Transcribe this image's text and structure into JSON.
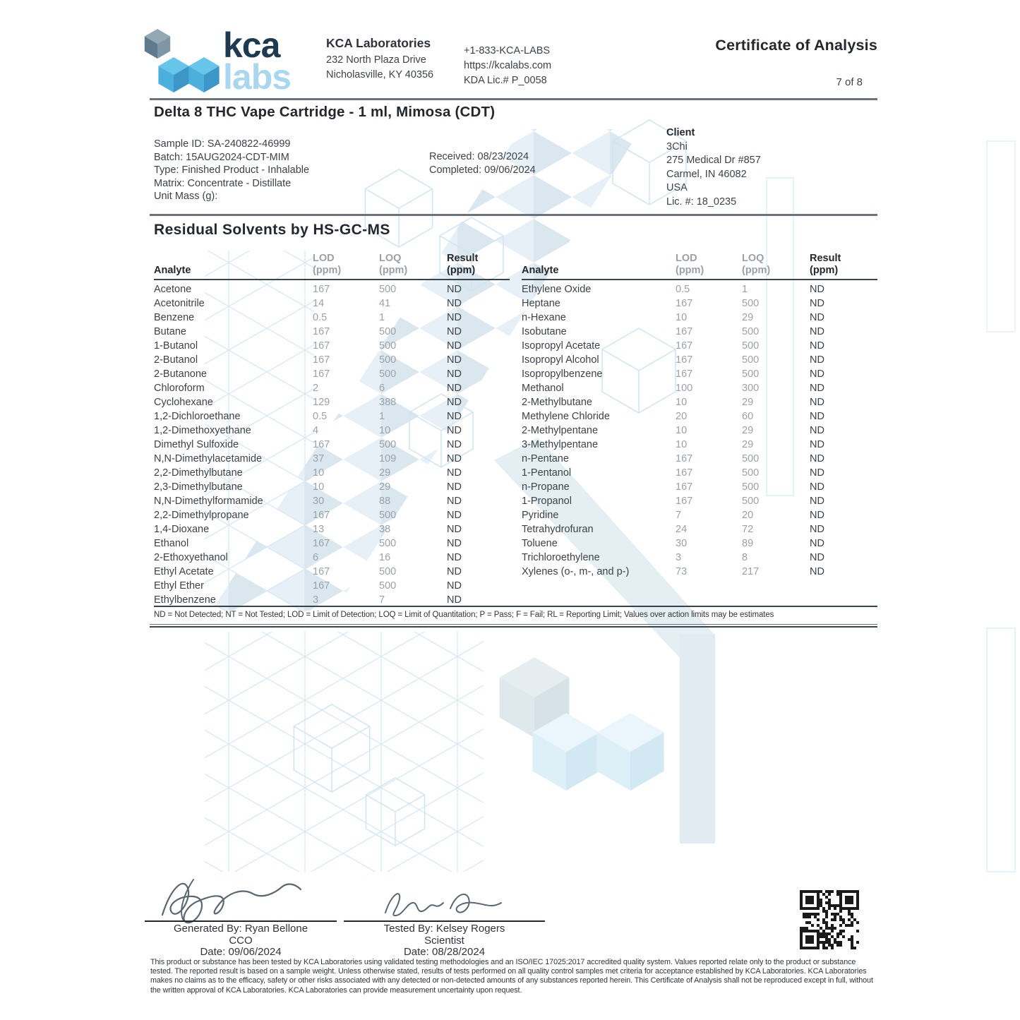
{
  "header": {
    "logo_kca": "kca",
    "logo_labs": "labs",
    "lab_name": "KCA Laboratories",
    "address_line1": "232 North Plaza Drive",
    "address_line2": "Nicholasville, KY 40356",
    "phone": "+1-833-KCA-LABS",
    "website": "https://kcalabs.com",
    "kda_license": "KDA Lic.# P_0058",
    "doc_title": "Certificate of Analysis",
    "page_indicator": "7 of 8"
  },
  "product": {
    "title": "Delta 8 THC Vape Cartridge - 1 ml, Mimosa (CDT)",
    "info_lines": [
      "Sample ID: SA-240822-46999",
      "Batch: 15AUG2024-CDT-MIM",
      "Type: Finished Product - Inhalable",
      "Matrix: Concentrate - Distillate",
      "Unit Mass (g):"
    ],
    "received": "Received: 08/23/2024",
    "completed": "Completed: 09/06/2024"
  },
  "client": {
    "heading": "Client",
    "lines": [
      "3Chi",
      "275 Medical Dr #857",
      "Carmel, IN 46082",
      "USA",
      "Lic. #: 18_0235"
    ]
  },
  "solvents": {
    "section_title": "Residual Solvents by HS-GC-MS",
    "columns": {
      "analyte": "Analyte",
      "lod": "LOD",
      "loq": "LOQ",
      "result": "Result",
      "ppm": "(ppm)"
    },
    "left": [
      {
        "analyte": "Acetone",
        "lod": "167",
        "loq": "500",
        "result": "ND"
      },
      {
        "analyte": "Acetonitrile",
        "lod": "14",
        "loq": "41",
        "result": "ND"
      },
      {
        "analyte": "Benzene",
        "lod": "0.5",
        "loq": "1",
        "result": "ND"
      },
      {
        "analyte": "Butane",
        "lod": "167",
        "loq": "500",
        "result": "ND"
      },
      {
        "analyte": "1-Butanol",
        "lod": "167",
        "loq": "500",
        "result": "ND"
      },
      {
        "analyte": "2-Butanol",
        "lod": "167",
        "loq": "500",
        "result": "ND"
      },
      {
        "analyte": "2-Butanone",
        "lod": "167",
        "loq": "500",
        "result": "ND"
      },
      {
        "analyte": "Chloroform",
        "lod": "2",
        "loq": "6",
        "result": "ND"
      },
      {
        "analyte": "Cyclohexane",
        "lod": "129",
        "loq": "388",
        "result": "ND"
      },
      {
        "analyte": "1,2-Dichloroethane",
        "lod": "0.5",
        "loq": "1",
        "result": "ND"
      },
      {
        "analyte": "1,2-Dimethoxyethane",
        "lod": "4",
        "loq": "10",
        "result": "ND"
      },
      {
        "analyte": "Dimethyl Sulfoxide",
        "lod": "167",
        "loq": "500",
        "result": "ND"
      },
      {
        "analyte": "N,N-Dimethylacetamide",
        "lod": "37",
        "loq": "109",
        "result": "ND"
      },
      {
        "analyte": "2,2-Dimethylbutane",
        "lod": "10",
        "loq": "29",
        "result": "ND"
      },
      {
        "analyte": "2,3-Dimethylbutane",
        "lod": "10",
        "loq": "29",
        "result": "ND"
      },
      {
        "analyte": "N,N-Dimethylformamide",
        "lod": "30",
        "loq": "88",
        "result": "ND"
      },
      {
        "analyte": "2,2-Dimethylpropane",
        "lod": "167",
        "loq": "500",
        "result": "ND"
      },
      {
        "analyte": "1,4-Dioxane",
        "lod": "13",
        "loq": "38",
        "result": "ND"
      },
      {
        "analyte": "Ethanol",
        "lod": "167",
        "loq": "500",
        "result": "ND"
      },
      {
        "analyte": "2-Ethoxyethanol",
        "lod": "6",
        "loq": "16",
        "result": "ND"
      },
      {
        "analyte": "Ethyl Acetate",
        "lod": "167",
        "loq": "500",
        "result": "ND"
      },
      {
        "analyte": "Ethyl Ether",
        "lod": "167",
        "loq": "500",
        "result": "ND"
      },
      {
        "analyte": "Ethylbenzene",
        "lod": "3",
        "loq": "7",
        "result": "ND"
      }
    ],
    "right": [
      {
        "analyte": "Ethylene Oxide",
        "lod": "0.5",
        "loq": "1",
        "result": "ND"
      },
      {
        "analyte": "Heptane",
        "lod": "167",
        "loq": "500",
        "result": "ND"
      },
      {
        "analyte": "n-Hexane",
        "lod": "10",
        "loq": "29",
        "result": "ND"
      },
      {
        "analyte": "Isobutane",
        "lod": "167",
        "loq": "500",
        "result": "ND"
      },
      {
        "analyte": "Isopropyl Acetate",
        "lod": "167",
        "loq": "500",
        "result": "ND"
      },
      {
        "analyte": "Isopropyl Alcohol",
        "lod": "167",
        "loq": "500",
        "result": "ND"
      },
      {
        "analyte": "Isopropylbenzene",
        "lod": "167",
        "loq": "500",
        "result": "ND"
      },
      {
        "analyte": "Methanol",
        "lod": "100",
        "loq": "300",
        "result": "ND"
      },
      {
        "analyte": "2-Methylbutane",
        "lod": "10",
        "loq": "29",
        "result": "ND"
      },
      {
        "analyte": "Methylene Chloride",
        "lod": "20",
        "loq": "60",
        "result": "ND"
      },
      {
        "analyte": "2-Methylpentane",
        "lod": "10",
        "loq": "29",
        "result": "ND"
      },
      {
        "analyte": "3-Methylpentane",
        "lod": "10",
        "loq": "29",
        "result": "ND"
      },
      {
        "analyte": "n-Pentane",
        "lod": "167",
        "loq": "500",
        "result": "ND"
      },
      {
        "analyte": "1-Pentanol",
        "lod": "167",
        "loq": "500",
        "result": "ND"
      },
      {
        "analyte": "n-Propane",
        "lod": "167",
        "loq": "500",
        "result": "ND"
      },
      {
        "analyte": "1-Propanol",
        "lod": "167",
        "loq": "500",
        "result": "ND"
      },
      {
        "analyte": "Pyridine",
        "lod": "7",
        "loq": "20",
        "result": "ND"
      },
      {
        "analyte": "Tetrahydrofuran",
        "lod": "24",
        "loq": "72",
        "result": "ND"
      },
      {
        "analyte": "Toluene",
        "lod": "30",
        "loq": "89",
        "result": "ND"
      },
      {
        "analyte": "Trichloroethylene",
        "lod": "3",
        "loq": "8",
        "result": "ND"
      },
      {
        "analyte": "Xylenes (o-, m-, and p-)",
        "lod": "73",
        "loq": "217",
        "result": "ND"
      }
    ],
    "footnote": "ND = Not Detected; NT = Not Tested; LOD = Limit of Detection; LOQ = Limit of Quantitation; P = Pass; F = Fail; RL = Reporting Limit; Values over action limits may be estimates"
  },
  "signatures": {
    "generated": {
      "by": "Generated By: Ryan Bellone",
      "title": "CCO",
      "date": "Date: 09/06/2024"
    },
    "tested": {
      "by": "Tested By: Kelsey Rogers",
      "title": "Scientist",
      "date": "Date: 08/28/2024"
    }
  },
  "disclaimer": "This product or substance has been tested by KCA Laboratories using validated testing methodologies and an ISO/IEC 17025:2017 accredited quality system. Values reported relate only to the product or substance tested. The reported result is based on a sample weight. Unless otherwise stated, results of tests performed on all quality control samples met criteria for acceptance established by KCA Laboratories. KCA Laboratories makes no claims as to the efficacy, safety or other risks associated with any detected or non-detected amounts of any substances reported herein. This Certificate of Analysis shall not be reproduced except in full, without the written approval of KCA Laboratories. KCA Laboratories can provide measurement uncertainty upon request.",
  "colors": {
    "navy": "#1d3a50",
    "logo_light_blue": "#a9d7ef",
    "cube_blue_top": "#67c5ea",
    "cube_blue_left": "#4cb0dd",
    "cube_blue_right": "#3c97c8",
    "value_gray": "#9aa1a8",
    "watermark_blue": "#dbe7ee"
  }
}
